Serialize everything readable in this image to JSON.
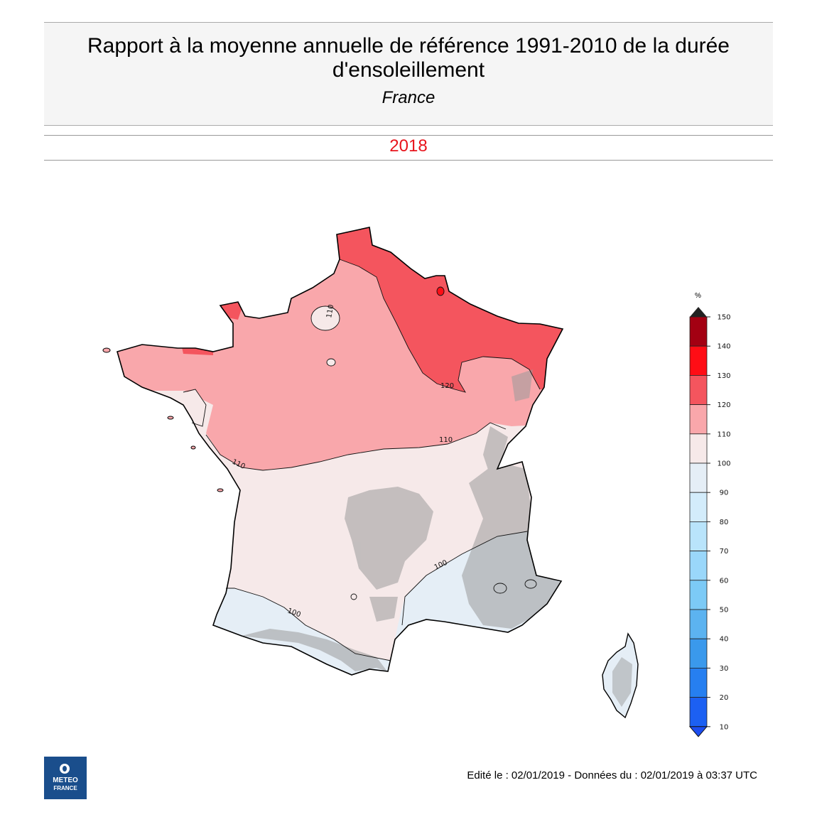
{
  "header": {
    "title": "Rapport à la moyenne annuelle de référence 1991-2010 de la durée d'ensoleillement",
    "subtitle": "France",
    "year": "2018"
  },
  "legend": {
    "unit": "%",
    "ticks": [
      "150",
      "140",
      "130",
      "120",
      "110",
      "100",
      "90",
      "80",
      "70",
      "60",
      "50",
      "40",
      "30",
      "20",
      "10"
    ],
    "colors": [
      "#a30012",
      "#ff0d15",
      "#f4555e",
      "#f9a7ab",
      "#f6e9e9",
      "#e5eef6",
      "#d3ecfb",
      "#b9e4fb",
      "#9ad7fa",
      "#7ccaf6",
      "#5cb3f0",
      "#3a99ec",
      "#267ff0",
      "#1c60f2"
    ],
    "top_arrow_color": "#222222",
    "bottom_arrow_color": "#1c4df0"
  },
  "map": {
    "zone_colors": {
      "above_120": "#f4555e",
      "110_120": "#f9a7ab",
      "100_110": "#f6e9e9",
      "90_100": "#e5eef6",
      "terrain": "#9b9b9b"
    },
    "contour_labels": [
      "110",
      "110",
      "110",
      "120",
      "100",
      "100"
    ]
  },
  "logo": {
    "line1": "METEO",
    "line2": "FRANCE",
    "color": "#1a4e8c"
  },
  "footer": {
    "text": "Edité le : 02/01/2019 - Données du : 02/01/2019 à 03:37 UTC"
  }
}
